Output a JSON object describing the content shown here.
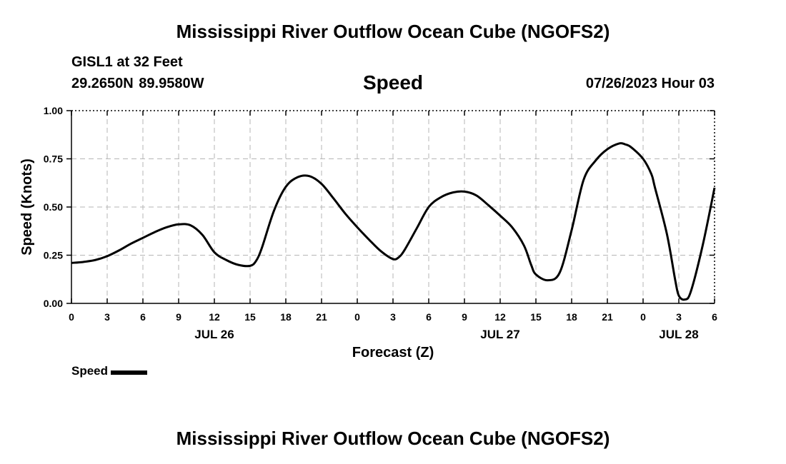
{
  "header": {
    "title": "Mississippi River Outflow Ocean Cube (NGOFS2)",
    "station": "GISL1 at 32 Feet",
    "coordinates": "29.2650N  89.9580W",
    "parameter": "Speed",
    "datetime": "07/26/2023 Hour 03"
  },
  "footer": {
    "title": "Mississippi River Outflow Ocean Cube (NGOFS2)"
  },
  "legend": {
    "label": "Speed",
    "color": "#000000"
  },
  "chart_data": {
    "type": "line",
    "xlabel": "Forecast (Z)",
    "ylabel": "Speed (Knots)",
    "xlim": [
      0,
      54
    ],
    "ylim": [
      0,
      1
    ],
    "x_unit": "forecast hour",
    "x_tick_values": [
      0,
      3,
      6,
      9,
      12,
      15,
      18,
      21,
      24,
      27,
      30,
      33,
      36,
      39,
      42,
      45,
      48,
      51,
      54
    ],
    "x_tick_labels": [
      "0",
      "3",
      "6",
      "9",
      "12",
      "15",
      "18",
      "21",
      "0",
      "3",
      "6",
      "9",
      "12",
      "15",
      "18",
      "21",
      "0",
      "3",
      "6"
    ],
    "date_labels": [
      {
        "x": 12,
        "label": "JUL 26"
      },
      {
        "x": 36,
        "label": "JUL 27"
      },
      {
        "x": 51,
        "label": "JUL 28"
      }
    ],
    "y_ticks": [
      0,
      0.25,
      0.5,
      0.75,
      1
    ],
    "y_tick_labels": [
      "0.00",
      "0.25",
      "0.50",
      "0.75",
      "1.00"
    ],
    "grid": true,
    "series": [
      {
        "name": "Speed",
        "color": "#000000",
        "x": [
          0,
          1,
          2,
          3,
          4,
          5,
          6,
          7,
          8,
          9,
          10,
          11,
          12,
          13,
          14,
          15,
          15.5,
          16,
          17,
          18,
          19,
          20,
          21,
          22,
          23,
          24,
          25,
          26,
          27,
          27.5,
          28,
          29,
          30,
          31,
          32,
          33,
          34,
          35,
          36,
          37,
          38,
          38.6,
          39,
          40,
          41,
          42,
          43,
          44,
          45,
          46,
          46.5,
          47,
          48,
          48.7,
          49,
          50,
          50.7,
          51,
          51.5,
          52,
          53,
          54
        ],
        "values": [
          0.21,
          0.215,
          0.225,
          0.245,
          0.275,
          0.31,
          0.34,
          0.37,
          0.395,
          0.41,
          0.405,
          0.355,
          0.265,
          0.225,
          0.2,
          0.195,
          0.22,
          0.29,
          0.48,
          0.605,
          0.655,
          0.66,
          0.62,
          0.545,
          0.465,
          0.395,
          0.33,
          0.27,
          0.23,
          0.24,
          0.28,
          0.39,
          0.5,
          0.55,
          0.575,
          0.58,
          0.56,
          0.51,
          0.455,
          0.395,
          0.3,
          0.2,
          0.15,
          0.12,
          0.16,
          0.38,
          0.64,
          0.74,
          0.8,
          0.83,
          0.825,
          0.81,
          0.75,
          0.67,
          0.6,
          0.36,
          0.12,
          0.04,
          0.02,
          0.06,
          0.3,
          0.6
        ]
      }
    ]
  }
}
